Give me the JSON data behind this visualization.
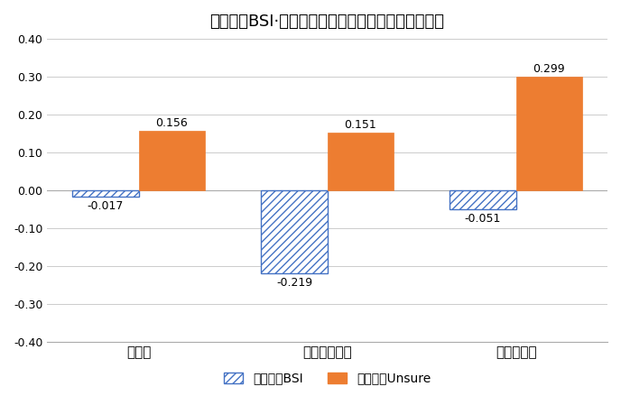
{
  "title": "自社業況BSI·不確実性：世界経済危機とコロナ危機",
  "categories": [
    "全期間",
    "世界経済危機",
    "コロナ危機"
  ],
  "bsi_values": [
    -0.017,
    -0.219,
    -0.051
  ],
  "unsure_values": [
    0.156,
    0.151,
    0.299
  ],
  "bsi_color": "#4472C4",
  "unsure_color": "#ED7D31",
  "ylim": [
    -0.4,
    0.4
  ],
  "yticks": [
    -0.4,
    -0.3,
    -0.2,
    -0.1,
    0.0,
    0.1,
    0.2,
    0.3,
    0.4
  ],
  "legend_bsi": "自社業況BSI",
  "legend_unsure": "自社業況Unsure",
  "bar_width": 0.35,
  "background_color": "#ffffff",
  "title_fontsize": 13
}
